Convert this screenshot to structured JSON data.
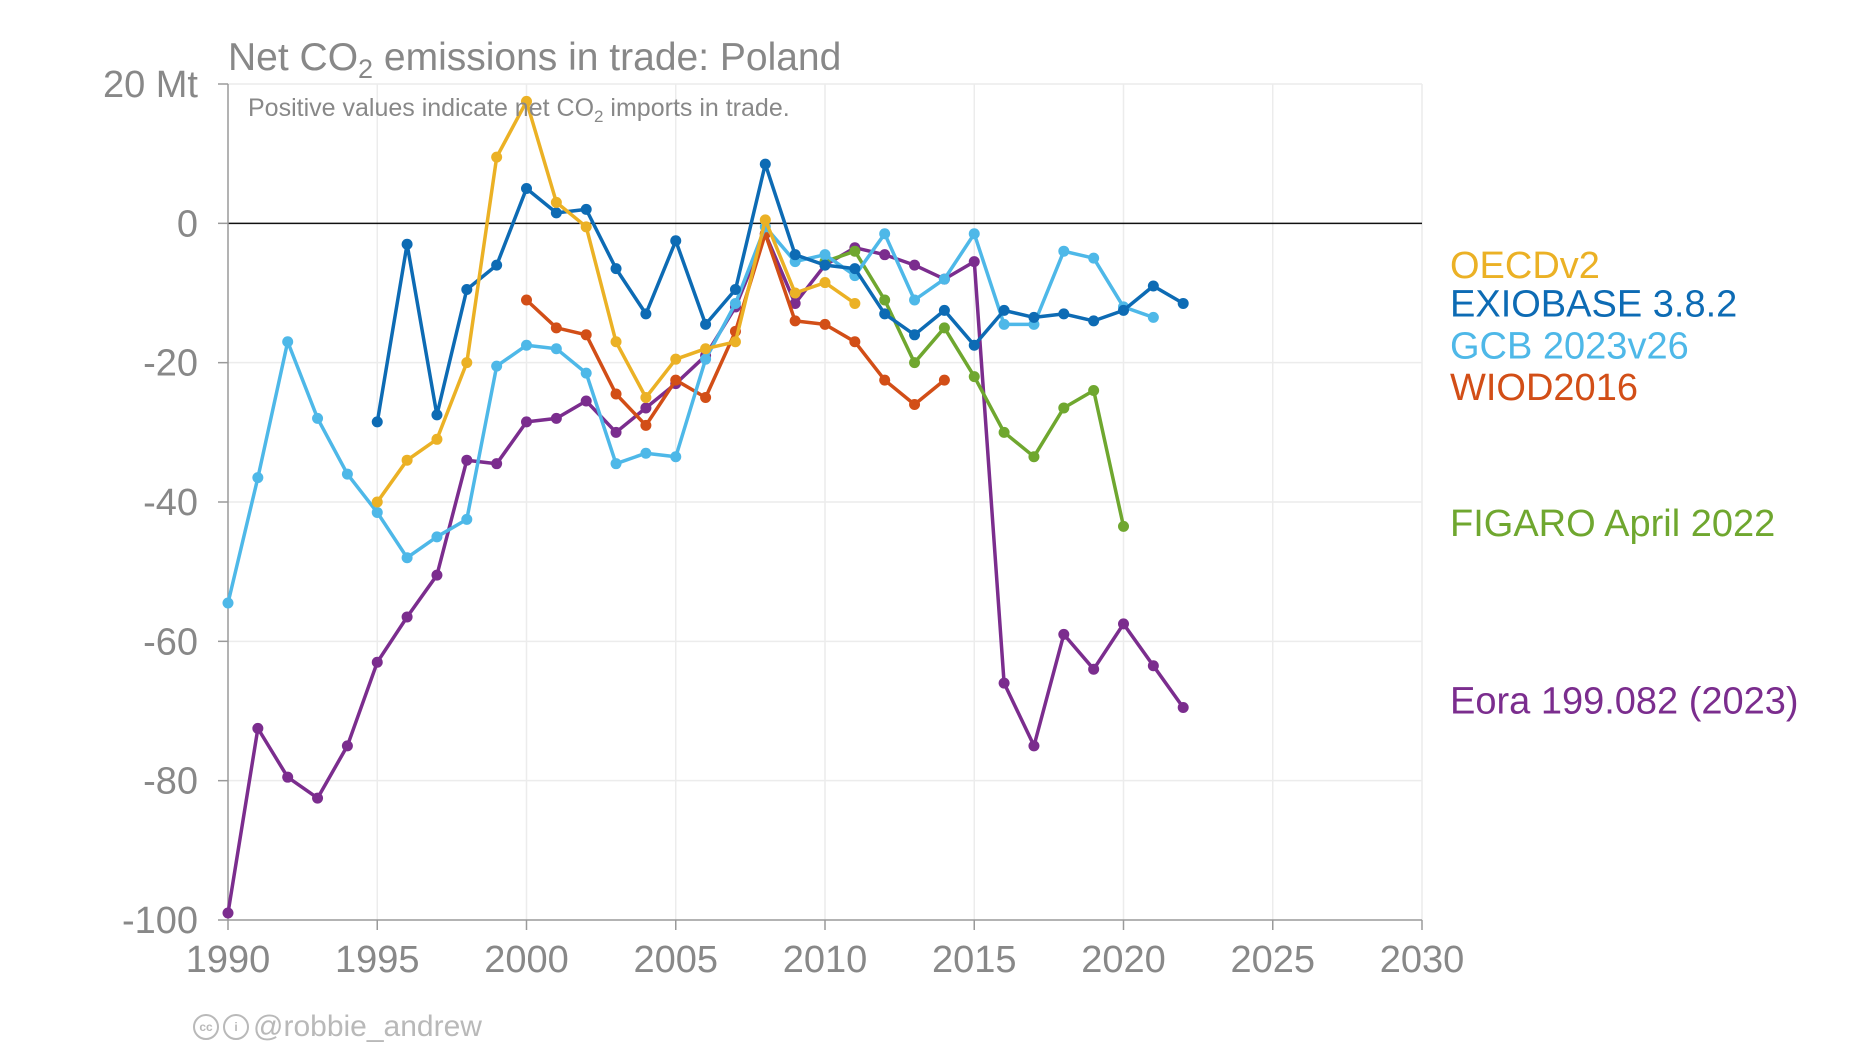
{
  "chart_data": {
    "type": "line",
    "title_prefix": "Net CO",
    "title_sub": "2",
    "title_suffix": " emissions in trade: Poland",
    "subtitle_prefix": "Positive values indicate net CO",
    "subtitle_sub": "2",
    "subtitle_suffix": " imports in trade.",
    "xlim": [
      1990,
      2030
    ],
    "ylim": [
      -100,
      20
    ],
    "x_ticks": [
      1990,
      1995,
      2000,
      2005,
      2010,
      2015,
      2020,
      2025,
      2030
    ],
    "y_ticks": [
      {
        "value": 20,
        "label": "20 Mt"
      },
      {
        "value": 0,
        "label": "0"
      },
      {
        "value": -20,
        "label": "-20"
      },
      {
        "value": -40,
        "label": "-40"
      },
      {
        "value": -60,
        "label": "-60"
      },
      {
        "value": -80,
        "label": "-80"
      },
      {
        "value": -100,
        "label": "-100"
      }
    ],
    "grid": true,
    "legend_placement": "right, labels at line ends",
    "series": [
      {
        "name": "Eora 199.082 (2023)",
        "color": "#7b2d8e",
        "label_y": -68.5,
        "points": [
          [
            1990,
            -99
          ],
          [
            1991,
            -72.5
          ],
          [
            1992,
            -79.5
          ],
          [
            1993,
            -82.5
          ],
          [
            1994,
            -75
          ],
          [
            1995,
            -63
          ],
          [
            1996,
            -56.5
          ],
          [
            1997,
            -50.5
          ],
          [
            1998,
            -34
          ],
          [
            1999,
            -34.5
          ],
          [
            2000,
            -28.5
          ],
          [
            2001,
            -28
          ],
          [
            2002,
            -25.5
          ],
          [
            2003,
            -30
          ],
          [
            2004,
            -26.5
          ],
          [
            2005,
            -23
          ],
          [
            2006,
            -19
          ],
          [
            2007,
            -12
          ],
          [
            2008,
            -1.5
          ],
          [
            2009,
            -11.5
          ],
          [
            2010,
            -6
          ],
          [
            2011,
            -3.5
          ],
          [
            2012,
            -4.5
          ],
          [
            2013,
            -6
          ],
          [
            2014,
            -8
          ],
          [
            2015,
            -5.5
          ],
          [
            2016,
            -66
          ],
          [
            2017,
            -75
          ],
          [
            2018,
            -59
          ],
          [
            2019,
            -64
          ],
          [
            2020,
            -57.5
          ],
          [
            2021,
            -63.5
          ],
          [
            2022,
            -69.5
          ]
        ]
      },
      {
        "name": "FIGARO April 2022",
        "color": "#6fa72f",
        "label_y": -43,
        "points": [
          [
            2010,
            -5.5
          ],
          [
            2011,
            -4
          ],
          [
            2012,
            -11
          ],
          [
            2013,
            -20
          ],
          [
            2014,
            -15
          ],
          [
            2015,
            -22
          ],
          [
            2016,
            -30
          ],
          [
            2017,
            -33.5
          ],
          [
            2018,
            -26.5
          ],
          [
            2019,
            -24
          ],
          [
            2020,
            -43.5
          ]
        ]
      },
      {
        "name": "WIOD2016",
        "color": "#d24e17",
        "label_y": -23.5,
        "points": [
          [
            2000,
            -11
          ],
          [
            2001,
            -15
          ],
          [
            2002,
            -16
          ],
          [
            2003,
            -24.5
          ],
          [
            2004,
            -29
          ],
          [
            2005,
            -22.5
          ],
          [
            2006,
            -25
          ],
          [
            2007,
            -15.5
          ],
          [
            2008,
            -1.5
          ],
          [
            2009,
            -14
          ],
          [
            2010,
            -14.5
          ],
          [
            2011,
            -17
          ],
          [
            2012,
            -22.5
          ],
          [
            2013,
            -26
          ],
          [
            2014,
            -22.5
          ]
        ]
      },
      {
        "name": "GCB 2023v26",
        "color": "#4eb8e8",
        "label_y": -17.5,
        "points": [
          [
            1990,
            -54.5
          ],
          [
            1991,
            -36.5
          ],
          [
            1992,
            -17
          ],
          [
            1993,
            -28
          ],
          [
            1994,
            -36
          ],
          [
            1995,
            -41.5
          ],
          [
            1996,
            -48
          ],
          [
            1997,
            -45
          ],
          [
            1998,
            -42.5
          ],
          [
            1999,
            -20.5
          ],
          [
            2000,
            -17.5
          ],
          [
            2001,
            -18
          ],
          [
            2002,
            -21.5
          ],
          [
            2003,
            -34.5
          ],
          [
            2004,
            -33
          ],
          [
            2005,
            -33.5
          ],
          [
            2006,
            -19.5
          ],
          [
            2007,
            -11.5
          ],
          [
            2008,
            -0.5
          ],
          [
            2009,
            -5.5
          ],
          [
            2010,
            -4.5
          ],
          [
            2011,
            -7.5
          ],
          [
            2012,
            -1.5
          ],
          [
            2013,
            -11
          ],
          [
            2014,
            -8
          ],
          [
            2015,
            -1.5
          ],
          [
            2016,
            -14.5
          ],
          [
            2017,
            -14.5
          ],
          [
            2018,
            -4
          ],
          [
            2019,
            -5
          ],
          [
            2020,
            -12
          ],
          [
            2021,
            -13.5
          ]
        ]
      },
      {
        "name": "EXIOBASE 3.8.2",
        "color": "#0d6bb4",
        "label_y": -11.5,
        "points": [
          [
            1995,
            -28.5
          ],
          [
            1996,
            -3
          ],
          [
            1997,
            -27.5
          ],
          [
            1998,
            -9.5
          ],
          [
            1999,
            -6
          ],
          [
            2000,
            5
          ],
          [
            2001,
            1.5
          ],
          [
            2002,
            2
          ],
          [
            2003,
            -6.5
          ],
          [
            2004,
            -13
          ],
          [
            2005,
            -2.5
          ],
          [
            2006,
            -14.5
          ],
          [
            2007,
            -9.5
          ],
          [
            2008,
            8.5
          ],
          [
            2009,
            -4.5
          ],
          [
            2010,
            -6
          ],
          [
            2011,
            -6.5
          ],
          [
            2012,
            -13
          ],
          [
            2013,
            -16
          ],
          [
            2014,
            -12.5
          ],
          [
            2015,
            -17.5
          ],
          [
            2016,
            -12.5
          ],
          [
            2017,
            -13.5
          ],
          [
            2018,
            -13
          ],
          [
            2019,
            -14
          ],
          [
            2020,
            -12.5
          ],
          [
            2021,
            -9
          ],
          [
            2022,
            -11.5
          ]
        ]
      },
      {
        "name": "OECDv2",
        "color": "#ebb125",
        "label_y": -6,
        "points": [
          [
            1995,
            -40
          ],
          [
            1996,
            -34
          ],
          [
            1997,
            -31
          ],
          [
            1998,
            -20
          ],
          [
            1999,
            9.5
          ],
          [
            2000,
            17.5
          ],
          [
            2001,
            3
          ],
          [
            2002,
            -0.5
          ],
          [
            2003,
            -17
          ],
          [
            2004,
            -25
          ],
          [
            2005,
            -19.5
          ],
          [
            2006,
            -18
          ],
          [
            2007,
            -17
          ],
          [
            2008,
            0.5
          ],
          [
            2009,
            -10
          ],
          [
            2010,
            -8.5
          ],
          [
            2011,
            -11.5
          ]
        ]
      }
    ]
  },
  "credit": {
    "handle": "@robbie_andrew",
    "icons": [
      "creative-commons-icon",
      "attribution-icon"
    ]
  }
}
